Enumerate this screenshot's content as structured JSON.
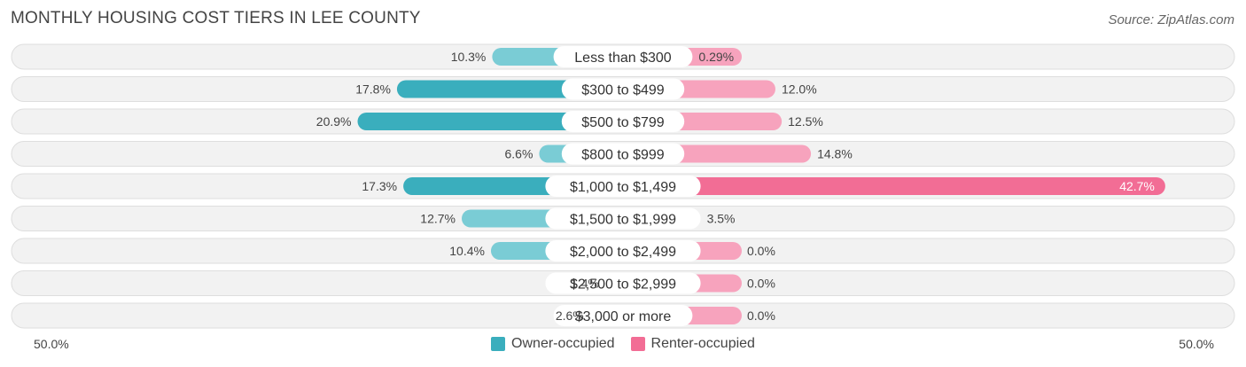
{
  "title": "MONTHLY HOUSING COST TIERS IN LEE COUNTY",
  "source": "Source: ZipAtlas.com",
  "colors": {
    "owner": "#3aaebd",
    "owner_light": "#7accd5",
    "renter": "#f26d95",
    "renter_light": "#f7a3bd",
    "row_bg": "#f2f2f2",
    "row_border": "#dedede"
  },
  "axis": {
    "left_label": "50.0%",
    "right_label": "50.0%"
  },
  "legend": {
    "owner_label": "Owner-occupied",
    "renter_label": "Renter-occupied"
  },
  "chart_data": {
    "type": "bar",
    "orientation": "horizontal-diverging",
    "categories": [
      "Less than $300",
      "$300 to $499",
      "$500 to $799",
      "$800 to $999",
      "$1,000 to $1,499",
      "$1,500 to $1,999",
      "$2,000 to $2,499",
      "$2,500 to $2,999",
      "$3,000 or more"
    ],
    "series": [
      {
        "name": "Owner-occupied",
        "values": [
          10.3,
          17.8,
          20.9,
          6.6,
          17.3,
          12.7,
          10.4,
          1.4,
          2.6
        ],
        "labels": [
          "10.3%",
          "17.8%",
          "20.9%",
          "6.6%",
          "17.3%",
          "12.7%",
          "10.4%",
          "1.4%",
          "2.6%"
        ]
      },
      {
        "name": "Renter-occupied",
        "values": [
          0.29,
          12.0,
          12.5,
          14.8,
          42.7,
          3.5,
          0.0,
          0.0,
          0.0
        ],
        "labels": [
          "0.29%",
          "12.0%",
          "12.5%",
          "14.8%",
          "42.7%",
          "3.5%",
          "0.0%",
          "0.0%",
          "0.0%"
        ]
      }
    ],
    "xlim": [
      -50,
      50
    ],
    "legend_position": "bottom-center"
  }
}
